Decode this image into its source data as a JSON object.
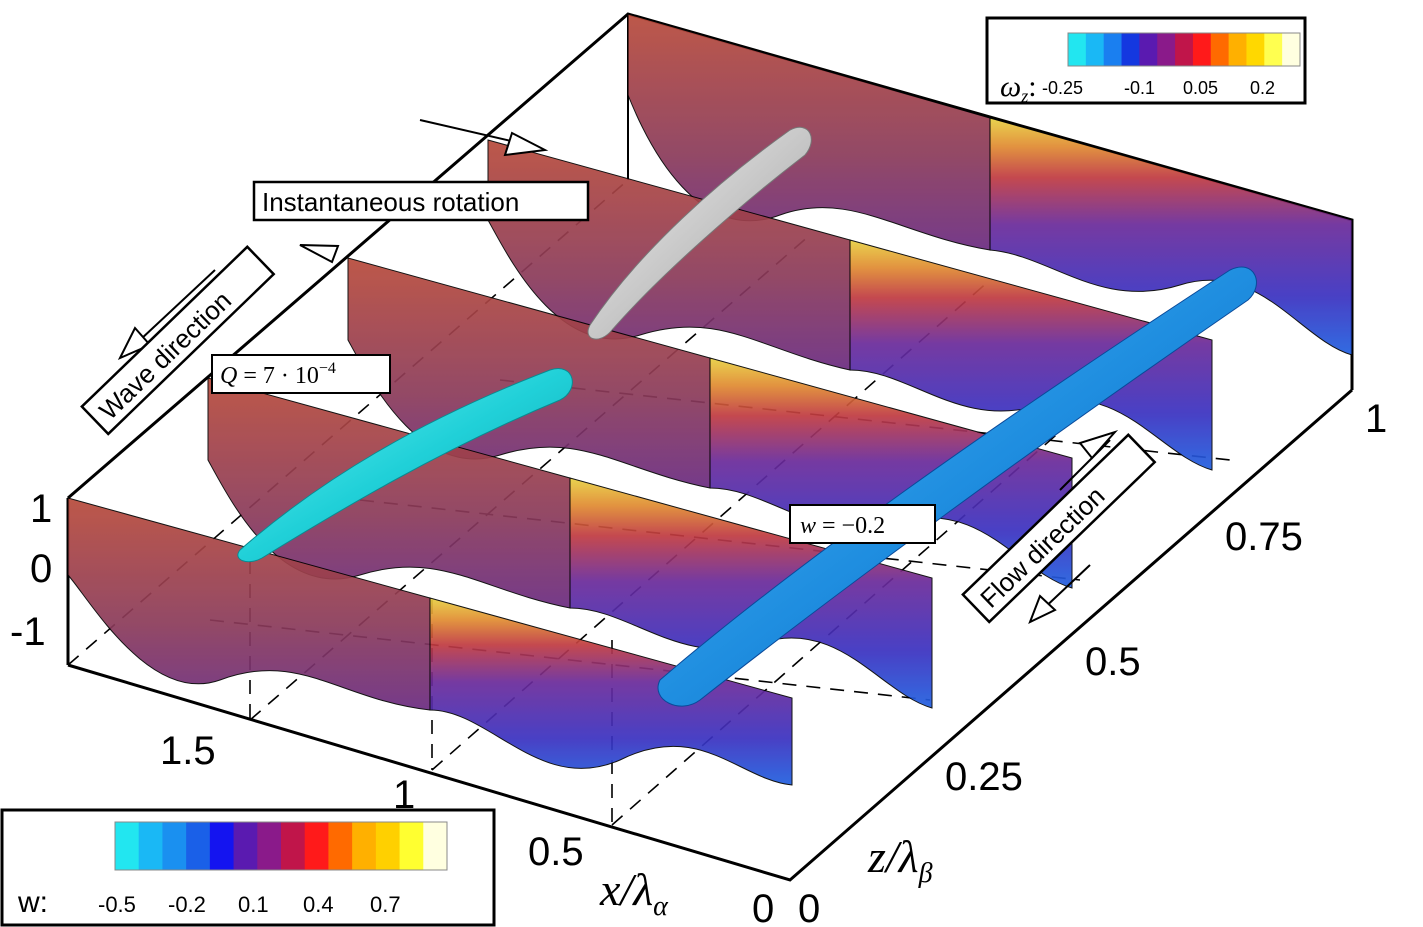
{
  "colorbar_wz": {
    "symbol": "ω",
    "subscript": "z",
    "colon": ":",
    "ticks": [
      "-0.25",
      "-0.1",
      "0.05",
      "0.2"
    ],
    "colors": [
      "#22e6f0",
      "#1ab8f5",
      "#1a7ff0",
      "#1438e0",
      "#5a1ab0",
      "#8a1a8a",
      "#c0154a",
      "#ff1a1a",
      "#ff6a00",
      "#ffb000",
      "#ffd800",
      "#ffff50",
      "#ffffe0"
    ]
  },
  "colorbar_w": {
    "label": "w:",
    "ticks": [
      "-0.5",
      "-0.2",
      "0.1",
      "0.4",
      "0.7"
    ],
    "colors": [
      "#22e6f0",
      "#1ab8f5",
      "#1a90f0",
      "#1a60e8",
      "#1414f0",
      "#5a1ab0",
      "#8a1a8a",
      "#c0154a",
      "#ff1a1a",
      "#ff6a00",
      "#ffb000",
      "#ffd000",
      "#ffff30",
      "#ffffe0"
    ]
  },
  "annotations": {
    "instantaneous_rotation": "Instantaneous rotation",
    "wave_direction": "Wave direction",
    "flow_direction": "Flow direction",
    "q_iso": {
      "lhs": "Q",
      "eq": " = 7 · 10",
      "exp": "−4"
    },
    "w_iso": {
      "lhs": "w",
      "eq": " = −0.2"
    }
  },
  "axes": {
    "y_ticks": [
      "1",
      "0",
      "-1"
    ],
    "x_ticks": [
      "1.5",
      "1",
      "0.5",
      "0"
    ],
    "x_label": {
      "main": "x/λ",
      "sub": "α"
    },
    "z_ticks": [
      "0",
      "0.25",
      "0.5",
      "0.75",
      "1"
    ],
    "z_label": {
      "main": "z/λ",
      "sub": "β"
    }
  }
}
